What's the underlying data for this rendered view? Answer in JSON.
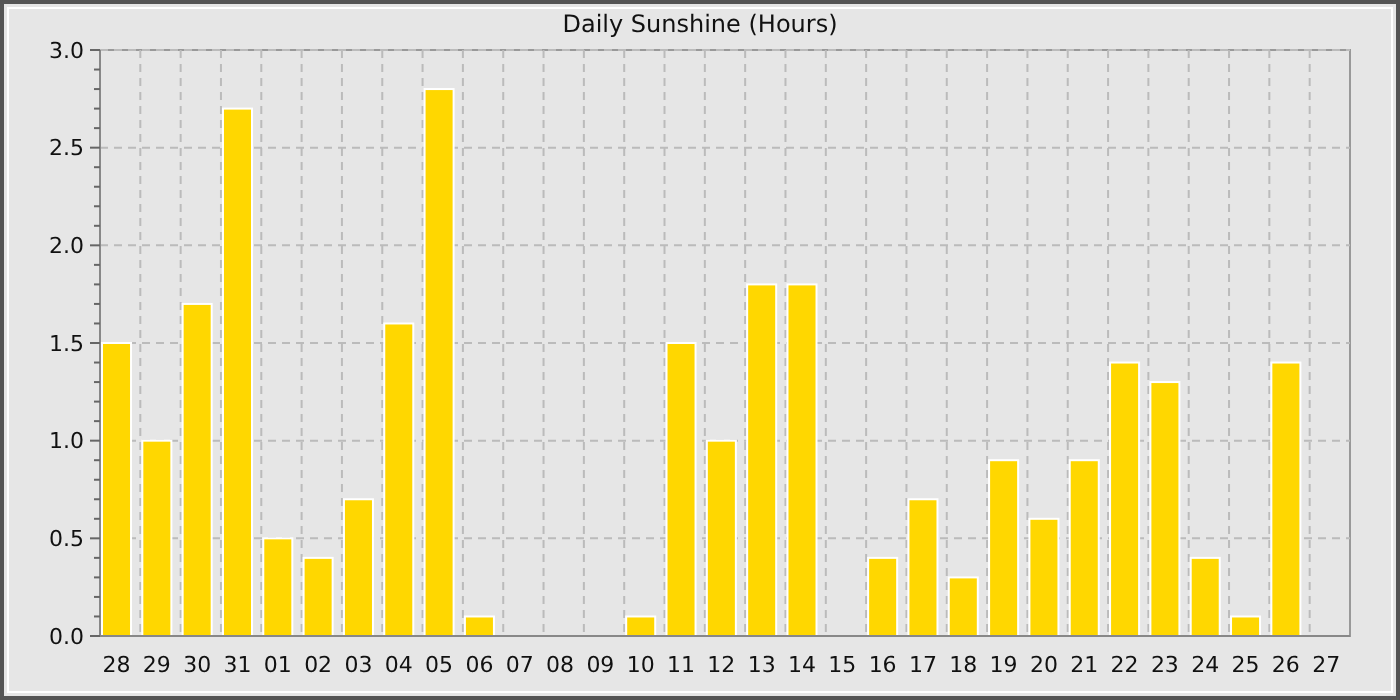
{
  "chart_data": {
    "type": "bar",
    "title": "Daily Sunshine (Hours)",
    "categories": [
      "28",
      "29",
      "30",
      "31",
      "01",
      "02",
      "03",
      "04",
      "05",
      "06",
      "07",
      "08",
      "09",
      "10",
      "11",
      "12",
      "13",
      "14",
      "15",
      "16",
      "17",
      "18",
      "19",
      "20",
      "21",
      "22",
      "23",
      "24",
      "25",
      "26",
      "27"
    ],
    "values": [
      1.5,
      1.0,
      1.7,
      2.7,
      0.5,
      0.4,
      0.7,
      1.6,
      2.8,
      0.1,
      0,
      0,
      0,
      0.1,
      1.5,
      1.0,
      1.8,
      1.8,
      0,
      0.4,
      0.7,
      0.3,
      0.9,
      0.6,
      0.9,
      1.4,
      1.3,
      0.4,
      0.1,
      1.4,
      0
    ],
    "color": "#ffd700",
    "ylim": [
      0,
      3
    ],
    "yticks": [
      {
        "value": 0,
        "label": "0.0"
      },
      {
        "value": 0.1,
        "label": null
      },
      {
        "value": 0.2,
        "label": null
      },
      {
        "value": 0.3,
        "label": null
      },
      {
        "value": 0.4,
        "label": null
      },
      {
        "value": 0.5,
        "label": "0.5"
      },
      {
        "value": 0.6,
        "label": null
      },
      {
        "value": 0.7,
        "label": null
      },
      {
        "value": 0.8,
        "label": null
      },
      {
        "value": 0.9,
        "label": null
      },
      {
        "value": 1.0,
        "label": "1.0"
      },
      {
        "value": 1.1,
        "label": null
      },
      {
        "value": 1.2,
        "label": null
      },
      {
        "value": 1.3,
        "label": null
      },
      {
        "value": 1.4,
        "label": null
      },
      {
        "value": 1.5,
        "label": "1.5"
      },
      {
        "value": 1.6,
        "label": null
      },
      {
        "value": 1.7,
        "label": null
      },
      {
        "value": 1.8,
        "label": null
      },
      {
        "value": 1.9,
        "label": null
      },
      {
        "value": 2.0,
        "label": "2.0"
      },
      {
        "value": 2.1,
        "label": null
      },
      {
        "value": 2.2,
        "label": null
      },
      {
        "value": 2.3,
        "label": null
      },
      {
        "value": 2.4,
        "label": null
      },
      {
        "value": 2.5,
        "label": "2.5"
      },
      {
        "value": 2.6,
        "label": null
      },
      {
        "value": 2.7,
        "label": null
      },
      {
        "value": 2.8,
        "label": null
      },
      {
        "value": 2.9,
        "label": null
      },
      {
        "value": 3.0,
        "label": "3.0"
      }
    ],
    "grid": true
  }
}
